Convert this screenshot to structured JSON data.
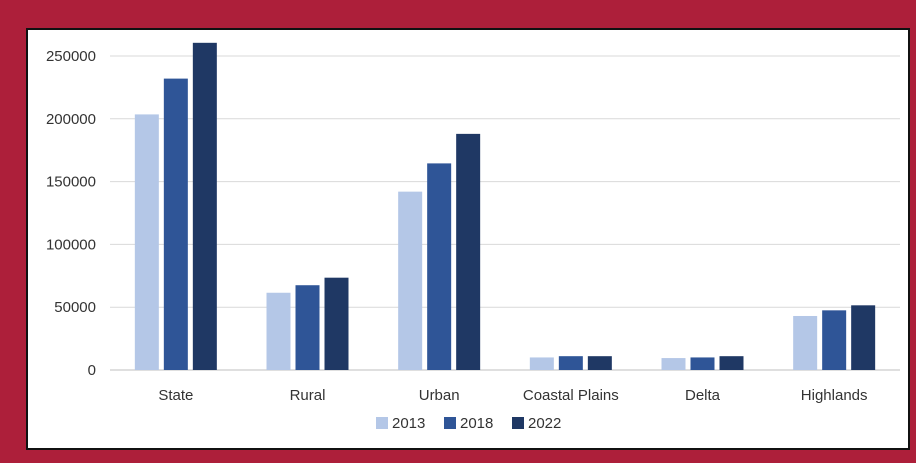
{
  "colors": {
    "frame": "#ad1f3a",
    "series": [
      "#b4c7e7",
      "#2f5597",
      "#1f3864"
    ],
    "grid": "#d9d9d9"
  },
  "chart_data": {
    "type": "bar",
    "title": "",
    "xlabel": "",
    "ylabel": "",
    "categories": [
      "State",
      "Rural",
      "Urban",
      "Coastal Plains",
      "Delta",
      "Highlands"
    ],
    "series": [
      {
        "name": "2013",
        "values": [
          203500,
          61500,
          142000,
          10000,
          9500,
          43000
        ]
      },
      {
        "name": "2018",
        "values": [
          232000,
          67500,
          164500,
          11000,
          10000,
          47500
        ]
      },
      {
        "name": "2022",
        "values": [
          260500,
          73500,
          188000,
          11000,
          11000,
          51500
        ]
      }
    ],
    "ylim": [
      0,
      250000
    ],
    "yticks": [
      "0",
      "50000",
      "100000",
      "150000",
      "200000",
      "250000"
    ],
    "grid": true,
    "legend_position": "bottom"
  }
}
